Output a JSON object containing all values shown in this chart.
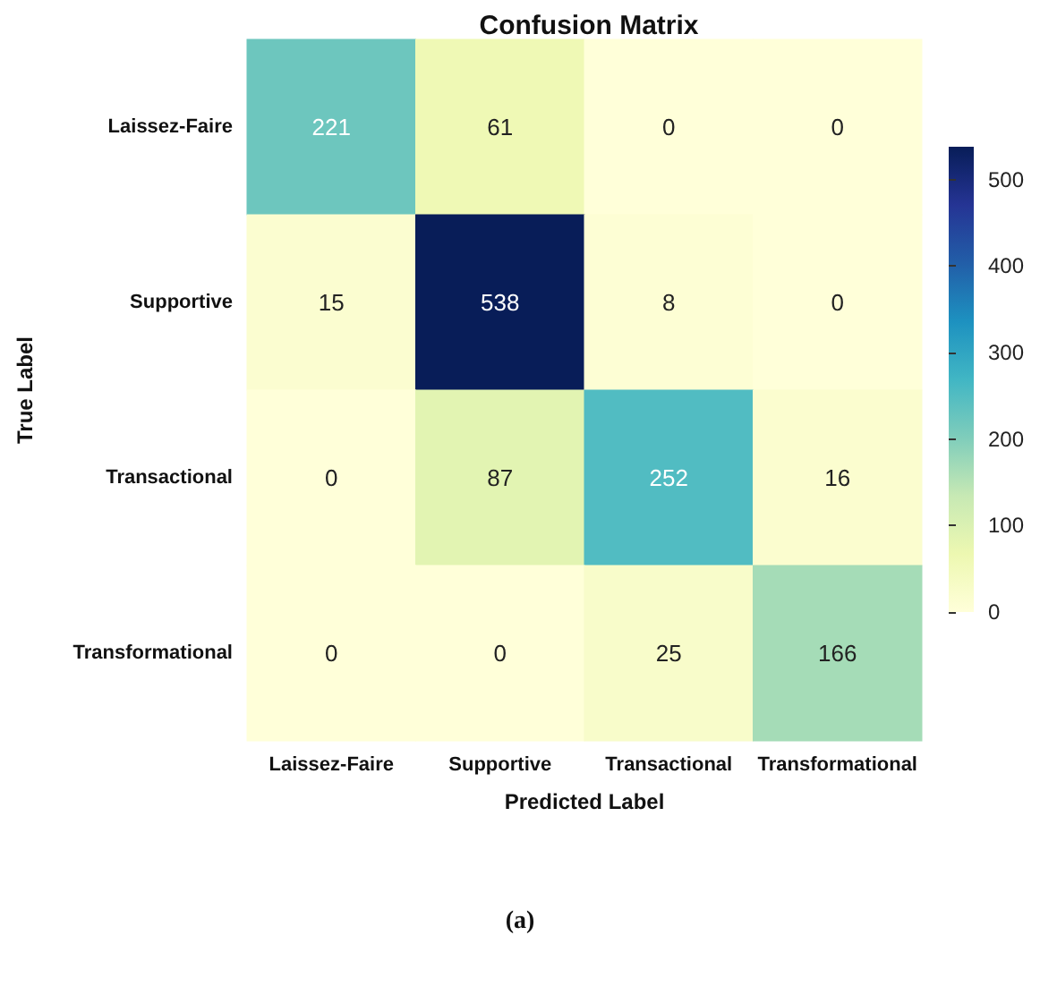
{
  "chart_data": {
    "type": "heatmap",
    "title": "Confusion Matrix",
    "xlabel": "Predicted Label",
    "ylabel": "True Label",
    "categories": [
      "Laissez-Faire",
      "Supportive",
      "Transactional",
      "Transformational"
    ],
    "y_categories": [
      "Laissez-Faire",
      "Supportive",
      "Transactional",
      "Transformational"
    ],
    "cells": [
      [
        221,
        61,
        0,
        0
      ],
      [
        15,
        538,
        8,
        0
      ],
      [
        0,
        87,
        252,
        16
      ],
      [
        0,
        0,
        25,
        166
      ]
    ],
    "data_labels": true,
    "clim": [
      0,
      538
    ],
    "cticks": [
      0,
      100,
      200,
      300,
      400,
      500
    ],
    "annotations": [
      "(a)"
    ]
  }
}
